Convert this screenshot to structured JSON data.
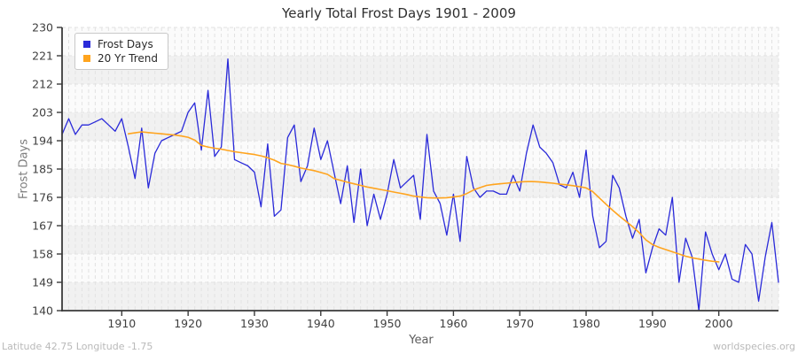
{
  "footer": {
    "left": "Latitude 42.75 Longitude -1.75",
    "right": "worldspecies.org"
  },
  "chart_data": {
    "type": "line",
    "title": "Yearly Total Frost Days 1901 - 2009",
    "xlabel": "Year",
    "ylabel": "Frost Days",
    "xlim": [
      1901,
      2009
    ],
    "ylim": [
      140,
      230
    ],
    "xticks": [
      1910,
      1920,
      1930,
      1940,
      1950,
      1960,
      1970,
      1980,
      1990,
      2000
    ],
    "yticks": [
      230,
      221,
      212,
      203,
      194,
      185,
      176,
      167,
      158,
      149,
      140
    ],
    "grid": "dashed vertical line each year, dashed horizontal line each y tick, alternating horizontal bands",
    "legend_position": "top-left",
    "plot_style": {
      "band_light": "#fbfbfb",
      "band_dark": "#f1f1f1",
      "grid_color": "#e2e2e2",
      "spine_color": "#3a3a3a",
      "tick_text_color": "#3f3f3f"
    },
    "series": [
      {
        "name": "Frost Days",
        "color": "#2a2ad9",
        "stroke_width": 1.3,
        "x_start": 1901,
        "step": 1,
        "values": [
          196,
          201,
          196,
          199,
          199,
          200,
          201,
          199,
          197,
          201,
          192,
          182,
          198,
          179,
          190,
          194,
          195,
          196,
          197,
          203,
          206,
          191,
          210,
          189,
          192,
          220,
          188,
          187,
          186,
          184,
          173,
          193,
          170,
          172,
          195,
          199,
          181,
          186,
          198,
          188,
          194,
          184,
          174,
          186,
          168,
          185,
          167,
          177,
          169,
          177,
          188,
          179,
          181,
          183,
          169,
          196,
          178,
          174,
          164,
          177,
          162,
          189,
          179,
          176,
          178,
          178,
          177,
          177,
          183,
          178,
          190,
          199,
          192,
          190,
          187,
          180,
          179,
          184,
          176,
          191,
          170,
          160,
          162,
          183,
          179,
          170,
          163,
          169,
          152,
          160,
          166,
          164,
          176,
          149,
          163,
          157,
          140,
          165,
          158,
          153,
          158,
          150,
          149,
          161,
          158,
          143,
          157,
          168,
          149
        ]
      },
      {
        "name": "20 Yr Trend",
        "color": "#ffa41e",
        "stroke_width": 1.6,
        "x_start": 1911,
        "step": 1,
        "values": [
          196.2,
          196.5,
          196.8,
          196.6,
          196.4,
          196.2,
          196.0,
          195.8,
          195.5,
          195.1,
          194.2,
          192.5,
          192.0,
          191.6,
          191.3,
          190.9,
          190.5,
          190.2,
          189.9,
          189.6,
          189.2,
          188.6,
          187.8,
          186.8,
          186.4,
          185.9,
          185.3,
          184.9,
          184.5,
          183.9,
          183.3,
          182.0,
          181.4,
          180.8,
          180.3,
          179.8,
          179.3,
          178.9,
          178.5,
          178.1,
          177.7,
          177.3,
          176.9,
          176.4,
          176.1,
          175.9,
          175.8,
          175.8,
          175.9,
          176.1,
          176.4,
          177.2,
          178.3,
          179.1,
          179.8,
          180.1,
          180.3,
          180.5,
          180.7,
          180.9,
          181.0,
          181.0,
          180.9,
          180.7,
          180.5,
          180.2,
          180.0,
          179.7,
          179.4,
          179.0,
          177.8,
          175.8,
          173.8,
          171.9,
          170.1,
          168.4,
          166.7,
          164.8,
          162.5,
          161.0,
          160.1,
          159.4,
          158.7,
          158.0,
          157.3,
          156.8,
          156.4,
          156.0,
          155.7,
          155.5
        ]
      }
    ]
  }
}
